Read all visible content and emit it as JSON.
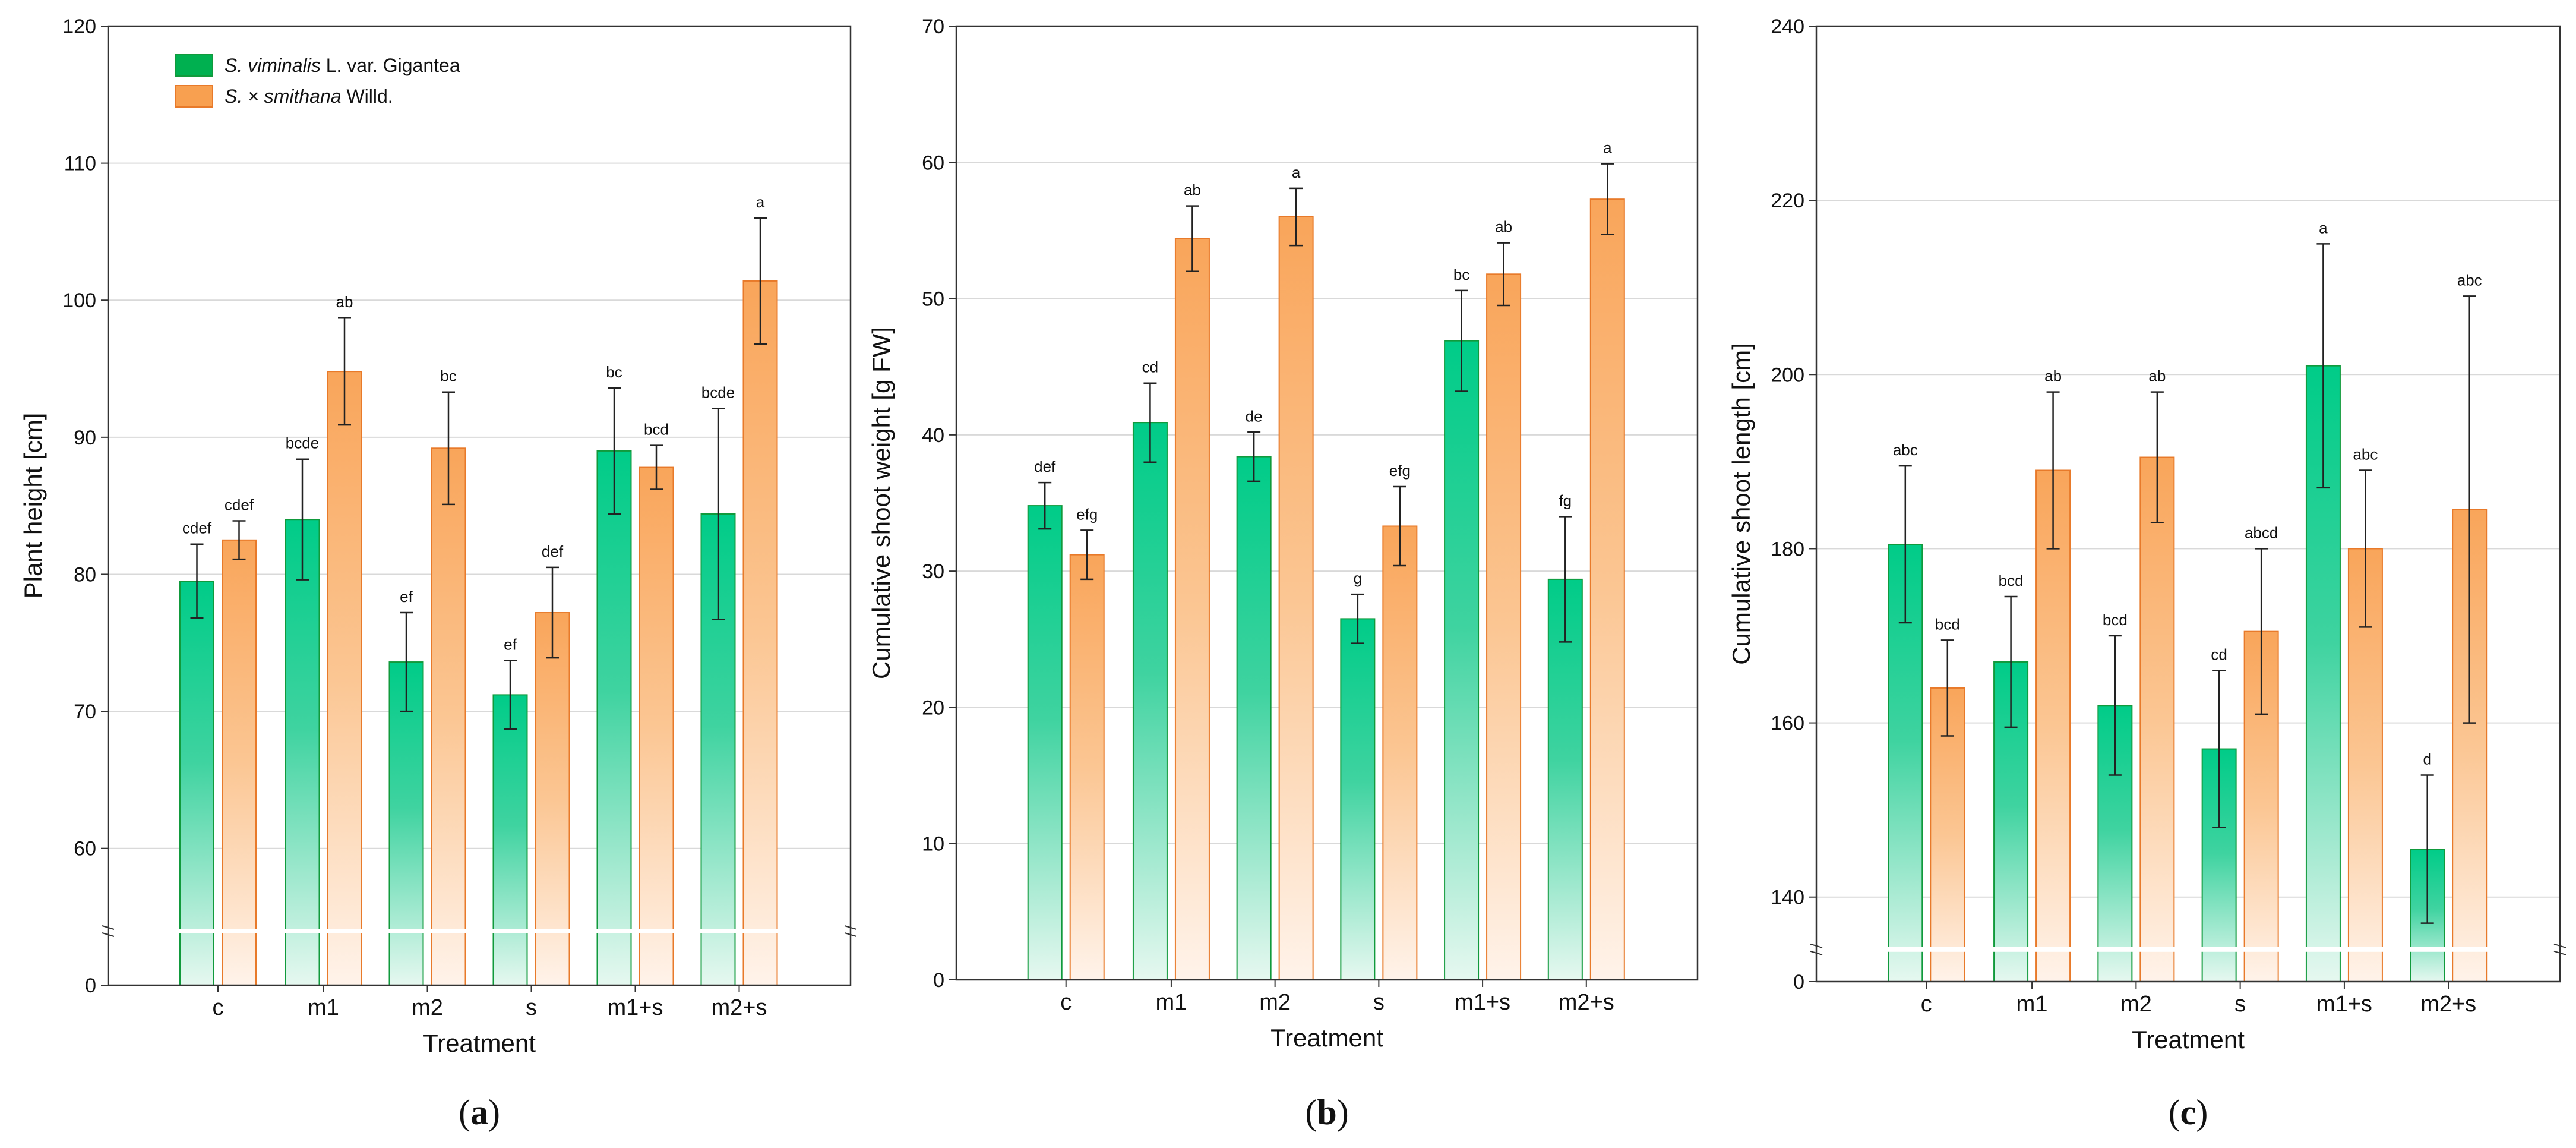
{
  "legend": [
    {
      "italic": "S. viminalis",
      "rest": " L. var. Gigantea",
      "color": "#00b050"
    },
    {
      "italic": "S. × smithana",
      "rest": " Willd.",
      "color": "#f8a050"
    }
  ],
  "colors": {
    "green_top": "#00cc88",
    "green_bottom": "#e6f8f0",
    "green_edge": "#119a3c",
    "orange_top": "#f9a55a",
    "orange_bottom": "#fff3ea",
    "orange_edge": "#e87a2a",
    "grid": "#d9d9d9",
    "axis": "#333333"
  },
  "chart_data": [
    {
      "type": "bar",
      "panel_label": "(a)",
      "panel_letter": "a",
      "title": "",
      "xlabel": "Treatment",
      "ylabel": "Plant height [cm]",
      "categories": [
        "c",
        "m1",
        "m2",
        "s",
        "m1+s",
        "m2+s"
      ],
      "y_ticks": [
        0,
        60,
        70,
        80,
        90,
        100,
        110,
        120
      ],
      "axis_break": {
        "from": 0,
        "to": 55
      },
      "ylim": [
        0,
        120
      ],
      "legend_position": "top-left",
      "series": [
        {
          "name": "S. viminalis L. var. Gigantea",
          "values": [
            79.5,
            84.0,
            73.6,
            71.2,
            89.0,
            84.4
          ],
          "errors": [
            2.7,
            4.4,
            3.6,
            2.5,
            4.6,
            7.7
          ],
          "letters": [
            "cdef",
            "bcde",
            "ef",
            "ef",
            "bc",
            "bcde"
          ]
        },
        {
          "name": "S. × smithana Willd.",
          "values": [
            82.5,
            94.8,
            89.2,
            77.2,
            87.8,
            101.4
          ],
          "errors": [
            1.4,
            3.9,
            4.1,
            3.3,
            1.6,
            4.6
          ],
          "letters": [
            "cdef",
            "ab",
            "bc",
            "def",
            "bcd",
            "a"
          ]
        }
      ]
    },
    {
      "type": "bar",
      "panel_label": "(b)",
      "panel_letter": "b",
      "title": "",
      "xlabel": "Treatment",
      "ylabel": "Cumulative shoot weight [g FW]",
      "categories": [
        "c",
        "m1",
        "m2",
        "s",
        "m1+s",
        "m2+s"
      ],
      "y_ticks": [
        0,
        10,
        20,
        30,
        40,
        50,
        60,
        70
      ],
      "ylim": [
        0,
        70
      ],
      "series": [
        {
          "name": "S. viminalis L. var. Gigantea",
          "values": [
            34.8,
            40.9,
            38.4,
            26.5,
            46.9,
            29.4
          ],
          "errors": [
            1.7,
            2.9,
            1.8,
            1.8,
            3.7,
            4.6
          ],
          "letters": [
            "def",
            "cd",
            "de",
            "g",
            "bc",
            "fg"
          ]
        },
        {
          "name": "S. × smithana Willd.",
          "values": [
            31.2,
            54.4,
            56.0,
            33.3,
            51.8,
            57.3
          ],
          "errors": [
            1.8,
            2.4,
            2.1,
            2.9,
            2.3,
            2.6
          ],
          "letters": [
            "efg",
            "ab",
            "a",
            "efg",
            "ab",
            "a"
          ]
        }
      ]
    },
    {
      "type": "bar",
      "panel_label": "(c)",
      "panel_letter": "c",
      "title": "",
      "xlabel": "Treatment",
      "ylabel": "Cumulative shoot length [cm]",
      "categories": [
        "c",
        "m1",
        "m2",
        "s",
        "m1+s",
        "m2+s"
      ],
      "y_ticks": [
        0,
        140,
        160,
        180,
        200,
        220,
        240
      ],
      "axis_break": {
        "from": 0,
        "to": 135
      },
      "ylim": [
        0,
        240
      ],
      "series": [
        {
          "name": "S. viminalis L. var. Gigantea",
          "values": [
            180.5,
            167.0,
            162.0,
            157.0,
            201.0,
            145.5
          ],
          "errors": [
            9.0,
            7.5,
            8.0,
            9.0,
            14.0,
            8.5
          ],
          "letters": [
            "abc",
            "bcd",
            "bcd",
            "cd",
            "a",
            "d"
          ]
        },
        {
          "name": "S. × smithana Willd.",
          "values": [
            164.0,
            189.0,
            190.5,
            170.5,
            180.0,
            184.5
          ],
          "errors": [
            5.5,
            9.0,
            7.5,
            9.5,
            9.0,
            24.5
          ],
          "letters": [
            "bcd",
            "ab",
            "ab",
            "abcd",
            "abc",
            "abc"
          ]
        }
      ]
    }
  ]
}
